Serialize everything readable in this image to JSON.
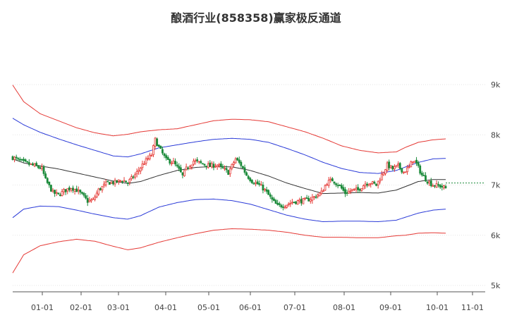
{
  "chart_data": {
    "type": "candlestick",
    "title": "酿酒行业(858358)赢家极反通道",
    "x_ticks": [
      "01-01",
      "02-01",
      "03-01",
      "04-01",
      "05-01",
      "06-01",
      "07-01",
      "08-01",
      "09-01",
      "10-01",
      "11-01"
    ],
    "y_ticks": [
      "9k",
      "8k",
      "7k",
      "6k",
      "5k"
    ],
    "ylim": [
      5000,
      9200
    ],
    "last_price": 7040,
    "colors": {
      "up": "#e53935",
      "down": "#1b8a3a",
      "outer_band": "#e53935",
      "inner_band": "#2b3bd8",
      "mid_line": "#333333",
      "last_price_line": "#1b8a3a"
    },
    "series": [
      {
        "key": "outer_upper",
        "points": [
          [
            0,
            8990
          ],
          [
            6,
            8660
          ],
          [
            15,
            8420
          ],
          [
            25,
            8280
          ],
          [
            35,
            8140
          ],
          [
            45,
            8040
          ],
          [
            55,
            7980
          ],
          [
            63,
            8010
          ],
          [
            70,
            8060
          ],
          [
            80,
            8100
          ],
          [
            90,
            8120
          ],
          [
            100,
            8200
          ],
          [
            110,
            8280
          ],
          [
            120,
            8310
          ],
          [
            130,
            8300
          ],
          [
            140,
            8260
          ],
          [
            150,
            8160
          ],
          [
            160,
            8060
          ],
          [
            170,
            7930
          ],
          [
            180,
            7780
          ],
          [
            190,
            7690
          ],
          [
            200,
            7640
          ],
          [
            210,
            7660
          ],
          [
            215,
            7750
          ],
          [
            222,
            7850
          ],
          [
            230,
            7900
          ],
          [
            237,
            7920
          ]
        ]
      },
      {
        "key": "inner_upper",
        "points": [
          [
            0,
            8330
          ],
          [
            6,
            8200
          ],
          [
            15,
            8050
          ],
          [
            25,
            7920
          ],
          [
            35,
            7800
          ],
          [
            45,
            7690
          ],
          [
            55,
            7580
          ],
          [
            63,
            7560
          ],
          [
            70,
            7620
          ],
          [
            80,
            7740
          ],
          [
            90,
            7800
          ],
          [
            100,
            7860
          ],
          [
            110,
            7910
          ],
          [
            120,
            7930
          ],
          [
            130,
            7910
          ],
          [
            140,
            7850
          ],
          [
            150,
            7730
          ],
          [
            160,
            7600
          ],
          [
            170,
            7450
          ],
          [
            180,
            7330
          ],
          [
            190,
            7250
          ],
          [
            200,
            7230
          ],
          [
            210,
            7290
          ],
          [
            215,
            7360
          ],
          [
            222,
            7450
          ],
          [
            230,
            7520
          ],
          [
            237,
            7530
          ]
        ]
      },
      {
        "key": "mid_line",
        "points": [
          [
            0,
            7520
          ],
          [
            6,
            7440
          ],
          [
            15,
            7380
          ],
          [
            25,
            7320
          ],
          [
            35,
            7240
          ],
          [
            45,
            7160
          ],
          [
            55,
            7080
          ],
          [
            63,
            7030
          ],
          [
            70,
            7070
          ],
          [
            80,
            7190
          ],
          [
            90,
            7290
          ],
          [
            100,
            7350
          ],
          [
            110,
            7370
          ],
          [
            120,
            7360
          ],
          [
            130,
            7290
          ],
          [
            140,
            7180
          ],
          [
            150,
            7040
          ],
          [
            160,
            6930
          ],
          [
            170,
            6830
          ],
          [
            180,
            6840
          ],
          [
            190,
            6850
          ],
          [
            200,
            6840
          ],
          [
            210,
            6900
          ],
          [
            215,
            6970
          ],
          [
            222,
            7070
          ],
          [
            230,
            7110
          ],
          [
            237,
            7110
          ]
        ]
      },
      {
        "key": "inner_lower",
        "points": [
          [
            0,
            6350
          ],
          [
            6,
            6520
          ],
          [
            15,
            6580
          ],
          [
            25,
            6570
          ],
          [
            35,
            6500
          ],
          [
            45,
            6420
          ],
          [
            55,
            6350
          ],
          [
            63,
            6320
          ],
          [
            70,
            6390
          ],
          [
            80,
            6560
          ],
          [
            90,
            6650
          ],
          [
            100,
            6710
          ],
          [
            110,
            6720
          ],
          [
            120,
            6690
          ],
          [
            130,
            6620
          ],
          [
            140,
            6510
          ],
          [
            150,
            6400
          ],
          [
            160,
            6320
          ],
          [
            170,
            6270
          ],
          [
            180,
            6280
          ],
          [
            190,
            6280
          ],
          [
            200,
            6270
          ],
          [
            210,
            6300
          ],
          [
            215,
            6360
          ],
          [
            222,
            6440
          ],
          [
            230,
            6500
          ],
          [
            237,
            6520
          ]
        ]
      },
      {
        "key": "outer_lower",
        "points": [
          [
            0,
            5250
          ],
          [
            6,
            5610
          ],
          [
            15,
            5790
          ],
          [
            25,
            5870
          ],
          [
            35,
            5920
          ],
          [
            45,
            5880
          ],
          [
            55,
            5780
          ],
          [
            63,
            5710
          ],
          [
            70,
            5750
          ],
          [
            80,
            5860
          ],
          [
            90,
            5950
          ],
          [
            100,
            6030
          ],
          [
            110,
            6100
          ],
          [
            120,
            6130
          ],
          [
            130,
            6120
          ],
          [
            140,
            6100
          ],
          [
            150,
            6060
          ],
          [
            160,
            6000
          ],
          [
            170,
            5960
          ],
          [
            180,
            5960
          ],
          [
            190,
            5950
          ],
          [
            200,
            5950
          ],
          [
            210,
            5990
          ],
          [
            215,
            6000
          ],
          [
            222,
            6040
          ],
          [
            230,
            6050
          ],
          [
            237,
            6040
          ]
        ]
      }
    ],
    "candle_anchors": [
      [
        0,
        7550
      ],
      [
        6,
        7450
      ],
      [
        12,
        7380
      ],
      [
        16,
        7330
      ],
      [
        18,
        7100
      ],
      [
        22,
        6850
      ],
      [
        25,
        6800
      ],
      [
        28,
        6880
      ],
      [
        32,
        6950
      ],
      [
        35,
        6900
      ],
      [
        38,
        6800
      ],
      [
        41,
        6680
      ],
      [
        44,
        6700
      ],
      [
        47,
        6900
      ],
      [
        52,
        7050
      ],
      [
        56,
        7050
      ],
      [
        60,
        7100
      ],
      [
        63,
        7050
      ],
      [
        67,
        7200
      ],
      [
        72,
        7450
      ],
      [
        76,
        7600
      ],
      [
        78,
        7900
      ],
      [
        80,
        7750
      ],
      [
        84,
        7500
      ],
      [
        88,
        7450
      ],
      [
        91,
        7300
      ],
      [
        93,
        7180
      ],
      [
        95,
        7320
      ],
      [
        99,
        7480
      ],
      [
        104,
        7420
      ],
      [
        108,
        7380
      ],
      [
        112,
        7400
      ],
      [
        116,
        7300
      ],
      [
        118,
        7250
      ],
      [
        120,
        7380
      ],
      [
        122,
        7520
      ],
      [
        125,
        7400
      ],
      [
        128,
        7200
      ],
      [
        131,
        7080
      ],
      [
        135,
        7000
      ],
      [
        138,
        6900
      ],
      [
        142,
        6700
      ],
      [
        145,
        6580
      ],
      [
        149,
        6600
      ],
      [
        153,
        6660
      ],
      [
        157,
        6680
      ],
      [
        161,
        6700
      ],
      [
        165,
        6760
      ],
      [
        169,
        6850
      ],
      [
        172,
        7050
      ],
      [
        175,
        7100
      ],
      [
        179,
        6980
      ],
      [
        182,
        6840
      ],
      [
        186,
        6900
      ],
      [
        189,
        6900
      ],
      [
        193,
        7030
      ],
      [
        196,
        7050
      ],
      [
        199,
        7000
      ],
      [
        202,
        7200
      ],
      [
        205,
        7400
      ],
      [
        208,
        7320
      ],
      [
        211,
        7380
      ],
      [
        214,
        7260
      ],
      [
        217,
        7350
      ],
      [
        219,
        7500
      ],
      [
        221,
        7420
      ],
      [
        224,
        7200
      ],
      [
        227,
        7080
      ],
      [
        230,
        7000
      ],
      [
        234,
        6980
      ],
      [
        237,
        6940
      ]
    ]
  }
}
